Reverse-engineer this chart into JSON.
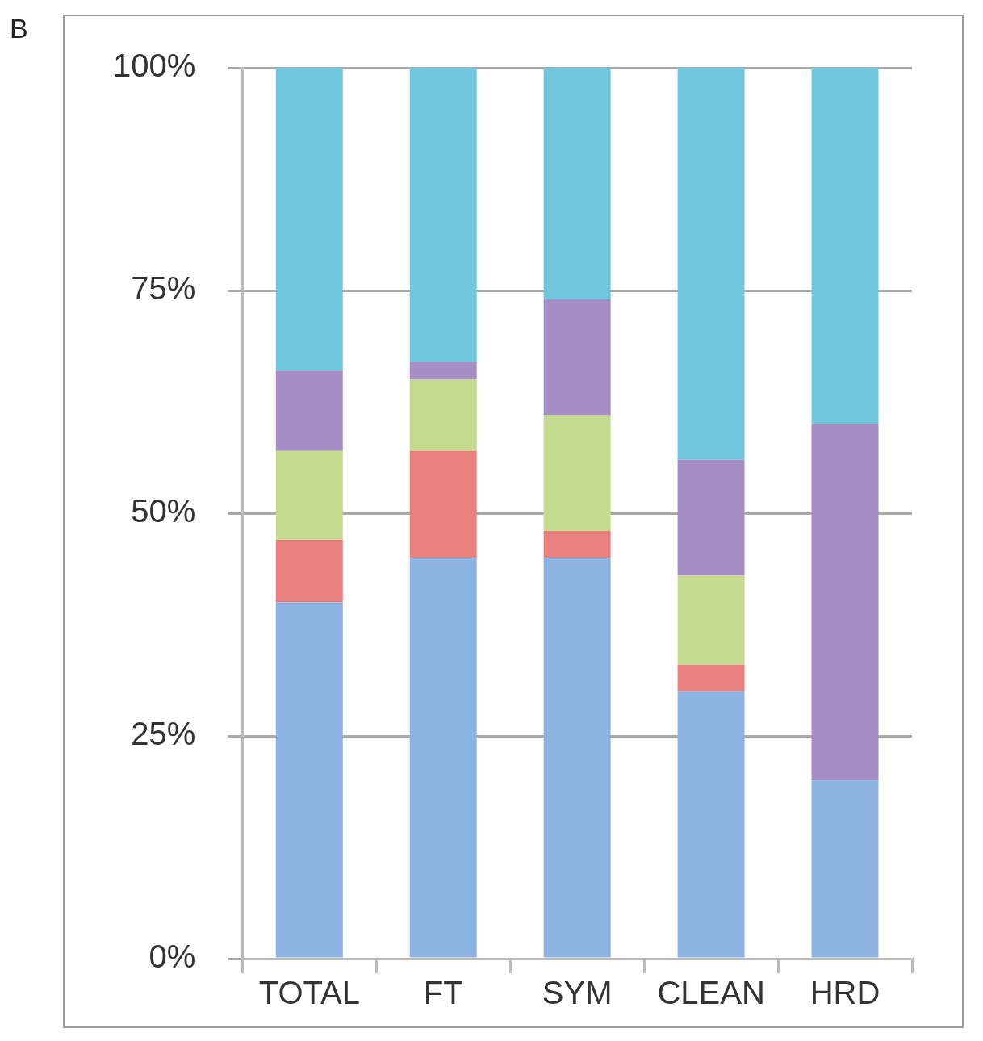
{
  "chart_data": {
    "type": "bar",
    "stacked": true,
    "annotations": [
      "B"
    ],
    "categories": [
      "TOTAL",
      "FT",
      "SYM",
      "CLEAN",
      "HRD"
    ],
    "series": [
      {
        "color": "#8db3e2",
        "values": [
          40,
          45,
          45,
          30,
          20
        ]
      },
      {
        "color": "#e8817e",
        "values": [
          7,
          12,
          3,
          3,
          0
        ]
      },
      {
        "color": "#c4da8e",
        "values": [
          10,
          8,
          13,
          10,
          0
        ]
      },
      {
        "color": "#a58dc6",
        "values": [
          9,
          2,
          13,
          13,
          40
        ]
      },
      {
        "color": "#6fc6dd",
        "values": [
          34,
          33,
          26,
          44,
          40
        ]
      }
    ],
    "ylim": [
      0,
      100
    ],
    "yticks": [
      {
        "value": 0,
        "label": "0%"
      },
      {
        "value": 25,
        "label": "25%"
      },
      {
        "value": 50,
        "label": "50%"
      },
      {
        "value": 75,
        "label": "75%"
      },
      {
        "value": 100,
        "label": "100%"
      }
    ],
    "grid": "y",
    "legend": false
  }
}
